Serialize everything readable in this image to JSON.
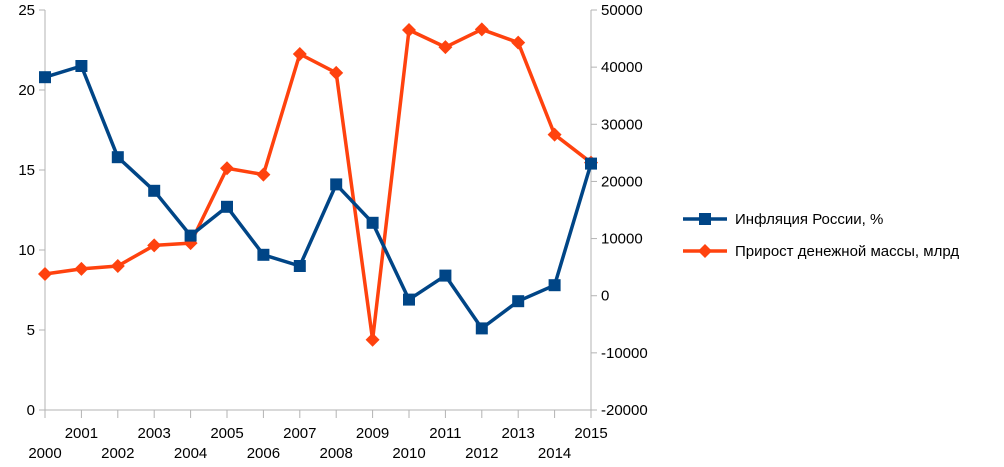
{
  "chart_data": {
    "type": "line",
    "title": "",
    "xlabel": "",
    "ylabel": "",
    "x": [
      "2000",
      "2001",
      "2002",
      "2003",
      "2004",
      "2005",
      "2006",
      "2007",
      "2008",
      "2009",
      "2010",
      "2011",
      "2012",
      "2013",
      "2014",
      "2015"
    ],
    "ylim": [
      0,
      25
    ],
    "y2lim": [
      -20000,
      50000
    ],
    "yticks": [
      0,
      5,
      10,
      15,
      20,
      25
    ],
    "y2ticks": [
      -20000,
      -10000,
      0,
      10000,
      20000,
      30000,
      40000,
      50000
    ],
    "grid": false,
    "legend_position": "right",
    "series": [
      {
        "name": "Инфляция России, %",
        "axis": "left",
        "marker": "square",
        "color": "#004586",
        "values": [
          20.8,
          21.5,
          15.8,
          13.7,
          10.9,
          12.7,
          9.7,
          9.0,
          14.1,
          11.7,
          6.9,
          8.4,
          5.1,
          6.8,
          7.8,
          15.4
        ]
      },
      {
        "name": "Прирост денежной массы, млрд",
        "axis": "right",
        "marker": "diamond",
        "color": "#ff420e",
        "values": [
          3800,
          4700,
          5200,
          8800,
          9200,
          22300,
          21200,
          42300,
          39000,
          -7700,
          46500,
          43500,
          46600,
          44300,
          28200,
          23300
        ]
      }
    ]
  }
}
